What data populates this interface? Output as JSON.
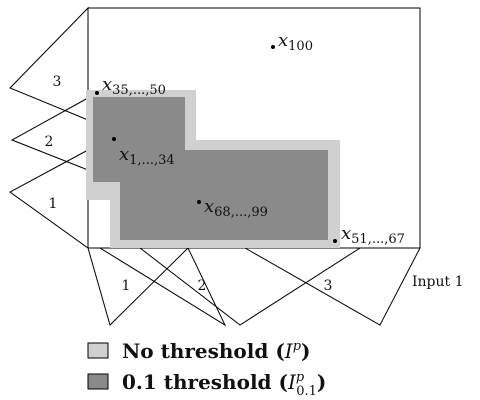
{
  "triangles_left": [
    "3",
    "2",
    "1"
  ],
  "triangles_bottom": [
    "1",
    "2",
    "3"
  ],
  "input_label": "Input 1",
  "points": {
    "x100": {
      "base": "x",
      "sub": "100"
    },
    "x35_50": {
      "base": "x",
      "sub": "35,...,50"
    },
    "x1_34": {
      "base": "x",
      "sub": "1,...,34"
    },
    "x68_99": {
      "base": "x",
      "sub": "68,...,99"
    },
    "x51_67": {
      "base": "x",
      "sub": "51,...,67"
    }
  },
  "legend": [
    {
      "label": "No threshold",
      "sym": "I",
      "sup": "p",
      "sub": "",
      "color": "#d0d0d0"
    },
    {
      "label": "0.1 threshold",
      "sym": "I",
      "sup": "p",
      "sub": "0.1",
      "color": "#8a8a8a"
    }
  ],
  "colors": {
    "outer_region": "#d0d0d0",
    "inner_region": "#8a8a8a",
    "stroke": "#000000"
  }
}
